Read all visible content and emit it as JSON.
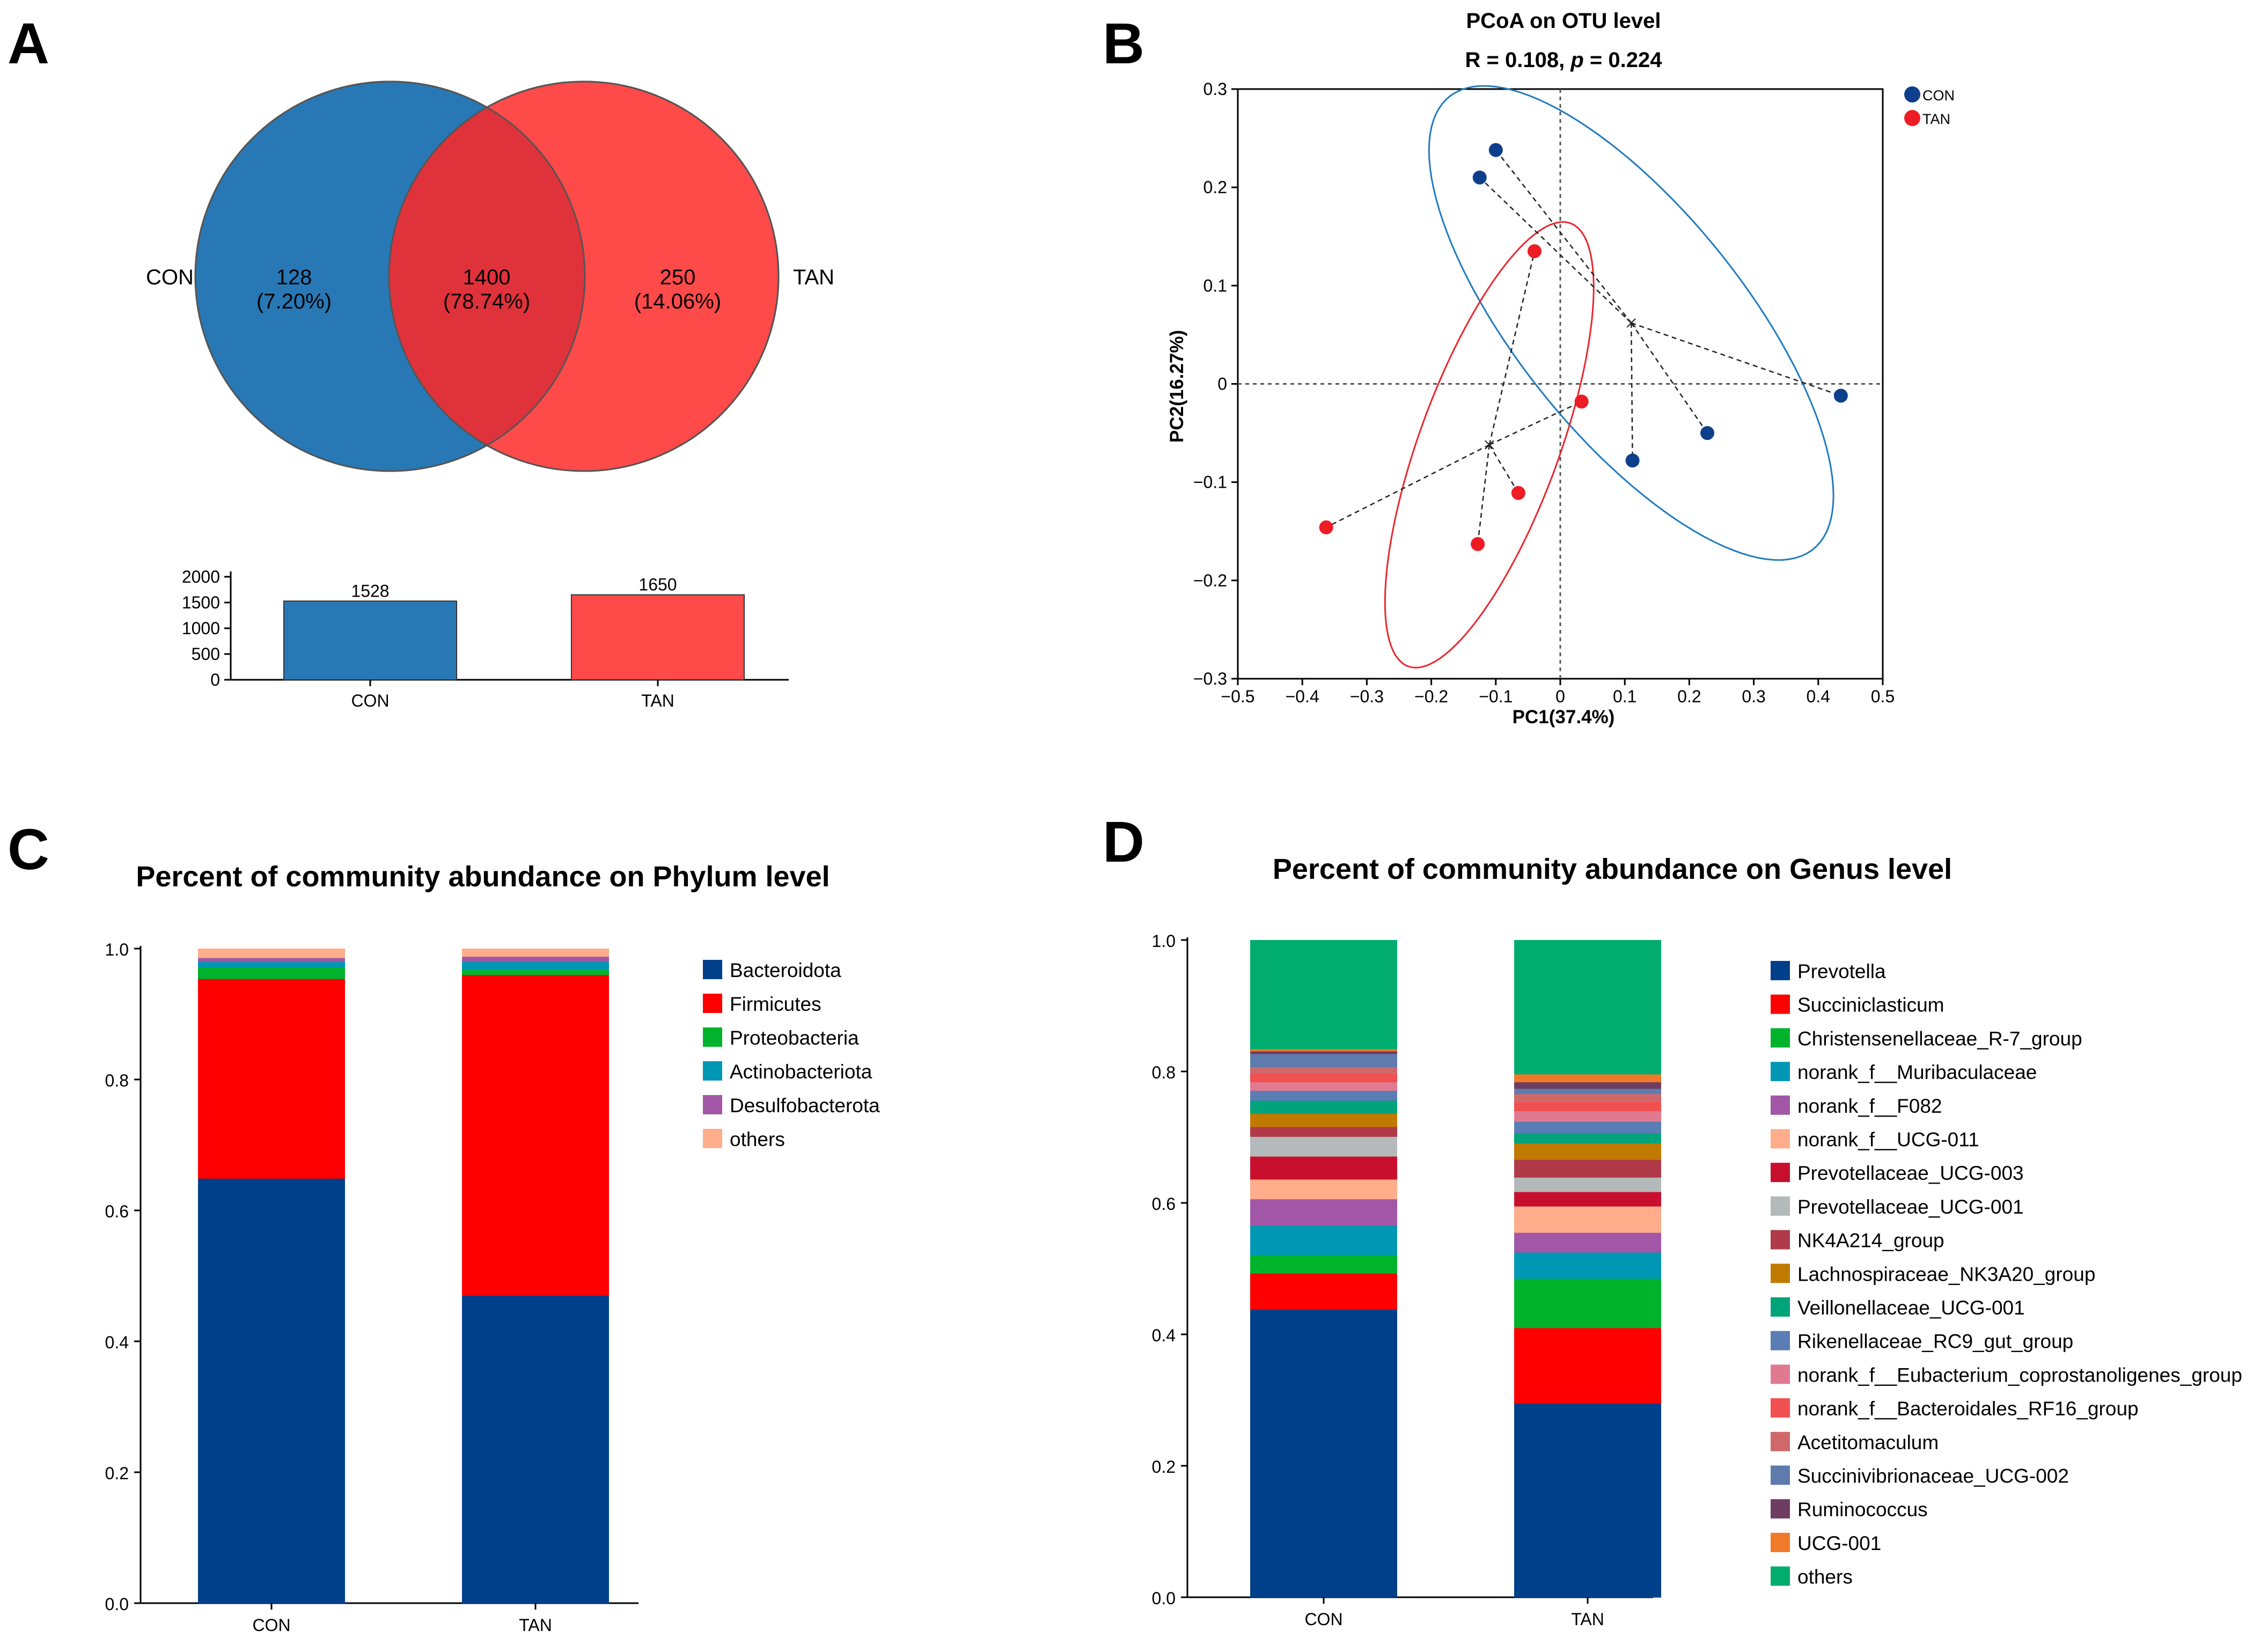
{
  "panel_labels": {
    "A": "A",
    "B": "B",
    "C": "C",
    "D": "D"
  },
  "colors": {
    "con_blue": "#2878B5",
    "tan_red": "#FF4A4A",
    "overlap": "#E0323A",
    "pcoa_con": "#0E3F8C",
    "pcoa_tan": "#EE1C24"
  },
  "chart_data": [
    {
      "id": "venn",
      "type": "venn",
      "sets": [
        {
          "name": "CON",
          "only_count": "128",
          "only_pct": "(7.20%)"
        },
        {
          "name": "TAN",
          "only_count": "250",
          "only_pct": "(14.06%)"
        }
      ],
      "overlap": {
        "count": "1400",
        "pct": "(78.74%)"
      }
    },
    {
      "id": "otu_bar",
      "type": "bar",
      "categories": [
        "CON",
        "TAN"
      ],
      "values": [
        1528,
        1650
      ],
      "value_labels": [
        "1528",
        "1650"
      ],
      "ylim": [
        0,
        2000
      ],
      "yticks": [
        "0",
        "500",
        "1000",
        "1500",
        "2000"
      ]
    },
    {
      "id": "pcoa",
      "type": "scatter",
      "title": "PCoA on OTU level",
      "stat_prefix": "R = 0.108, ",
      "stat_p": "p",
      "stat_suffix": " = 0.224",
      "xlabel": "PC1(37.4%)",
      "ylabel": "PC2(16.27%)",
      "xlim": [
        -0.5,
        0.5
      ],
      "ylim": [
        -0.3,
        0.3
      ],
      "xticks": [
        "−0.5",
        "−0.4",
        "−0.3",
        "−0.2",
        "−0.1",
        "0",
        "0.1",
        "0.2",
        "0.3",
        "0.4",
        "0.5"
      ],
      "yticks": [
        "−0.3",
        "−0.2",
        "−0.1",
        "0",
        "0.1",
        "0.2",
        "0.3"
      ],
      "series": [
        {
          "name": "CON",
          "centroid": [
            0.11,
            0.062
          ],
          "points": [
            [
              -0.1,
              0.238
            ],
            [
              -0.125,
              0.21
            ],
            [
              0.435,
              -0.012
            ],
            [
              0.228,
              -0.05
            ],
            [
              0.112,
              -0.078
            ]
          ]
        },
        {
          "name": "TAN",
          "centroid": [
            -0.11,
            -0.062
          ],
          "points": [
            [
              -0.04,
              0.135
            ],
            [
              0.033,
              -0.018
            ],
            [
              -0.065,
              -0.111
            ],
            [
              -0.128,
              -0.163
            ],
            [
              -0.363,
              -0.146
            ]
          ]
        }
      ],
      "ellipses": [
        {
          "name": "CON",
          "center": [
            0.11,
            0.062
          ],
          "semi_axes": [
            0.37,
            0.14
          ],
          "angle_deg": -35
        },
        {
          "name": "TAN",
          "center": [
            -0.11,
            -0.062
          ],
          "semi_axes": [
            0.26,
            0.1
          ],
          "angle_deg": 58
        }
      ]
    },
    {
      "id": "phylum",
      "type": "stacked_bar",
      "title": "Percent of community abundance on Phylum level",
      "categories": [
        "CON",
        "TAN"
      ],
      "ylim": [
        0,
        1
      ],
      "yticks": [
        "0.0",
        "0.2",
        "0.4",
        "0.6",
        "0.8",
        "1.0"
      ],
      "series": [
        {
          "name": "Bacteroidota",
          "color": "#003F8A",
          "values": [
            0.649,
            0.47
          ]
        },
        {
          "name": "Firmicutes",
          "color": "#FF0000",
          "values": [
            0.305,
            0.49
          ]
        },
        {
          "name": "Proteobacteria",
          "color": "#00B32D",
          "values": [
            0.018,
            0.008
          ]
        },
        {
          "name": "Actinobacteriota",
          "color": "#0097B5",
          "values": [
            0.008,
            0.012
          ]
        },
        {
          "name": "Desulfobacterota",
          "color": "#A157A6",
          "values": [
            0.006,
            0.008
          ]
        },
        {
          "name": "others",
          "color": "#FFAD8A",
          "values": [
            0.014,
            0.012
          ]
        }
      ]
    },
    {
      "id": "genus",
      "type": "stacked_bar",
      "title": "Percent of community abundance on Genus level",
      "categories": [
        "CON",
        "TAN"
      ],
      "ylim": [
        0,
        1
      ],
      "yticks": [
        "0.0",
        "0.2",
        "0.4",
        "0.6",
        "0.8",
        "1.0"
      ],
      "series": [
        {
          "name": "Prevotella",
          "color": "#003F8A",
          "values": [
            0.438,
            0.295
          ]
        },
        {
          "name": "Succiniclasticum",
          "color": "#FF0000",
          "values": [
            0.055,
            0.115
          ]
        },
        {
          "name": "Christensenellaceae_R-7_group",
          "color": "#00B32D",
          "values": [
            0.028,
            0.075
          ]
        },
        {
          "name": "norank_f__Muribaculaceae",
          "color": "#0097B5",
          "values": [
            0.045,
            0.04
          ]
        },
        {
          "name": "norank_f__F082",
          "color": "#A157A6",
          "values": [
            0.04,
            0.03
          ]
        },
        {
          "name": "norank_f__UCG-011",
          "color": "#FFAD8A",
          "values": [
            0.03,
            0.04
          ]
        },
        {
          "name": "Prevotellaceae_UCG-003",
          "color": "#C8102E",
          "values": [
            0.035,
            0.022
          ]
        },
        {
          "name": "Prevotellaceae_UCG-001",
          "color": "#B4B9B9",
          "values": [
            0.03,
            0.022
          ]
        },
        {
          "name": "NK4A214_group",
          "color": "#B03A48",
          "values": [
            0.015,
            0.027
          ]
        },
        {
          "name": "Lachnospiraceae_NK3A20_group",
          "color": "#C07A00",
          "values": [
            0.02,
            0.025
          ]
        },
        {
          "name": "Veillonellaceae_UCG-001",
          "color": "#00A37A",
          "values": [
            0.02,
            0.015
          ]
        },
        {
          "name": "Rikenellaceae_RC9_gut_group",
          "color": "#5A7DB5",
          "values": [
            0.015,
            0.018
          ]
        },
        {
          "name": "norank_f__Eubacterium_coprostanoligenes_group",
          "color": "#E07A90",
          "values": [
            0.013,
            0.016
          ]
        },
        {
          "name": "norank_f__Bacteroidales_RF16_group",
          "color": "#F05050",
          "values": [
            0.013,
            0.014
          ]
        },
        {
          "name": "Acetitomaculum",
          "color": "#D0686A",
          "values": [
            0.01,
            0.012
          ]
        },
        {
          "name": "Succinivibrionaceae_UCG-002",
          "color": "#5F7BAE",
          "values": [
            0.02,
            0.008
          ]
        },
        {
          "name": "Ruminococcus",
          "color": "#6E3D62",
          "values": [
            0.004,
            0.01
          ]
        },
        {
          "name": "UCG-001",
          "color": "#F07A2A",
          "values": [
            0.003,
            0.012
          ]
        },
        {
          "name": "others",
          "color": "#00AD6E",
          "values": [
            0.166,
            0.204
          ]
        }
      ]
    }
  ]
}
